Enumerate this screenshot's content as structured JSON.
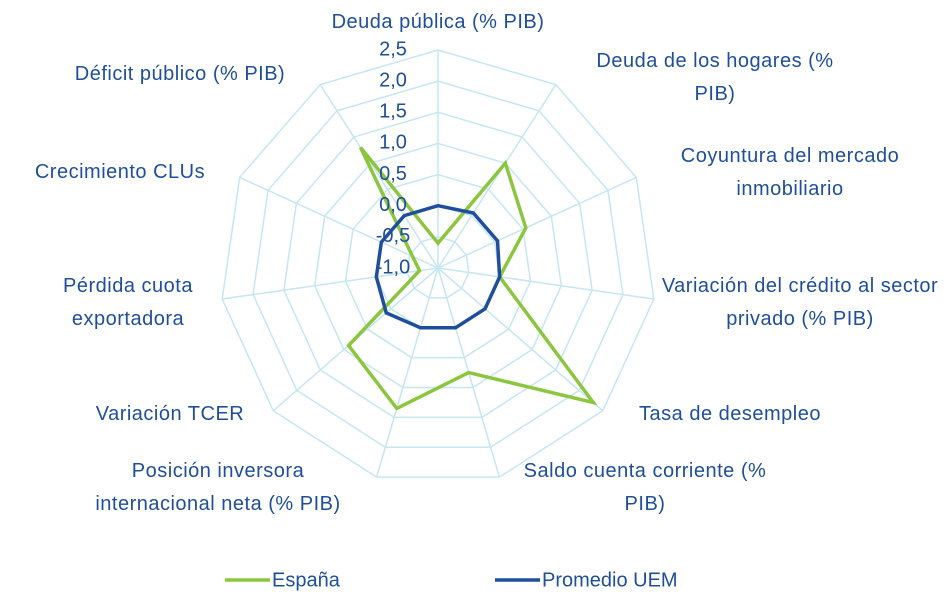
{
  "chart_data": {
    "type": "radar",
    "categories": [
      "Deuda pública (% PIB)",
      "Deuda de los hogares (% PIB)",
      "Coyuntura del mercado inmobiliario",
      "Variación del crédito al sector privado (% PIB)",
      "Tasa de desempleo",
      "Saldo cuenta corriente (% PIB)",
      "Posición inversora internacional neta (% PIB)",
      "Variación TCER",
      "Pérdida cuota exportadora",
      "Crecimiento CLUs",
      "Déficit público (% PIB)"
    ],
    "series": [
      {
        "name": "España",
        "color": "#8cc63f",
        "values": [
          -0.6,
          1.0,
          0.55,
          0.0,
          2.3,
          0.75,
          1.35,
          0.9,
          -0.7,
          -0.55,
          1.3
        ]
      },
      {
        "name": "Promedio UEM",
        "color": "#1f4e9c",
        "values": [
          0.0,
          0.05,
          0.05,
          0.0,
          0.0,
          0.0,
          0.0,
          0.1,
          0.0,
          0.0,
          0.0
        ]
      }
    ],
    "ylim": [
      -1.0,
      2.5
    ],
    "yticks": [
      {
        "value": -1.0,
        "label": "-1,0"
      },
      {
        "value": -0.5,
        "label": "-0,5"
      },
      {
        "value": 0.0,
        "label": "0,0"
      },
      {
        "value": 0.5,
        "label": "0,5"
      },
      {
        "value": 1.0,
        "label": "1,0"
      },
      {
        "value": 1.5,
        "label": "1,5"
      },
      {
        "value": 2.0,
        "label": "2,0"
      },
      {
        "value": 2.5,
        "label": "2,5"
      }
    ],
    "grid": true
  }
}
